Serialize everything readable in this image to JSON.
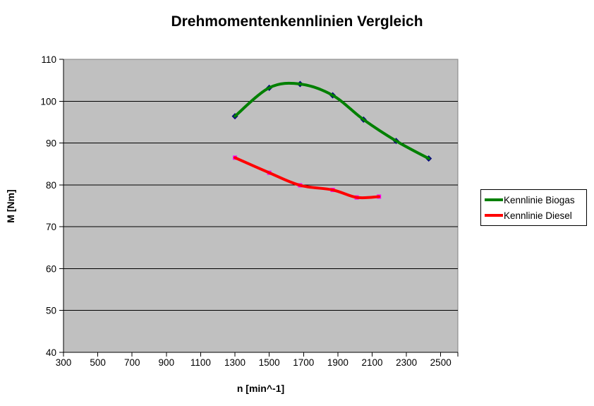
{
  "title": "Drehmomentenkennlinien Vergleich",
  "colors": {
    "plot_background": "#C0C0C0",
    "plot_border": "#808080",
    "gridline": "#000000",
    "axis": "#000000",
    "biogas_line": "#008000",
    "biogas_marker": "#000080",
    "diesel_line": "#FF0000",
    "diesel_marker": "#FF00FF"
  },
  "chart_data": {
    "type": "line",
    "title": "Drehmomentenkennlinien Vergleich",
    "xlabel": "n [min^-1]",
    "ylabel": "M [Nm]",
    "xlim": [
      300,
      2600
    ],
    "ylim": [
      40,
      110
    ],
    "x_ticks": [
      300,
      500,
      700,
      900,
      1100,
      1300,
      1500,
      1700,
      1900,
      2100,
      2300,
      2500
    ],
    "y_ticks": [
      40,
      50,
      60,
      70,
      80,
      90,
      100,
      110
    ],
    "grid": "horizontal-major",
    "legend_position": "right",
    "smoothed": true,
    "series": [
      {
        "name": "Kennlinie Biogas",
        "color": "#008000",
        "marker": "diamond",
        "marker_color": "#000080",
        "points": [
          [
            1300,
            96.4
          ],
          [
            1500,
            103.2
          ],
          [
            1680,
            104.1
          ],
          [
            1870,
            101.4
          ],
          [
            2050,
            95.6
          ],
          [
            2240,
            90.5
          ],
          [
            2430,
            86.3
          ]
        ]
      },
      {
        "name": "Kennlinie Diesel",
        "color": "#FF0000",
        "marker": "square",
        "marker_color": "#FF00FF",
        "points": [
          [
            1300,
            86.5
          ],
          [
            1500,
            82.9
          ],
          [
            1680,
            79.9
          ],
          [
            1870,
            78.8
          ],
          [
            2010,
            77.0
          ],
          [
            2140,
            77.2
          ]
        ]
      }
    ]
  }
}
